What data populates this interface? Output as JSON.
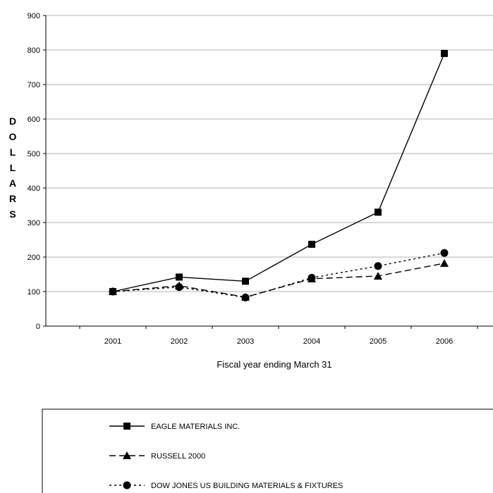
{
  "chart_data": {
    "type": "line",
    "categories": [
      "2001",
      "2002",
      "2003",
      "2004",
      "2005",
      "2006"
    ],
    "series": [
      {
        "name": "EAGLE MATERIALS INC.",
        "values": [
          100,
          142,
          130,
          237,
          330,
          790
        ],
        "marker": "square",
        "dash": "solid"
      },
      {
        "name": "RUSSELL 2000",
        "values": [
          100,
          117,
          84,
          137,
          145,
          182
        ],
        "marker": "triangle",
        "dash": "dashed"
      },
      {
        "name": "DOW JONES US BUILDING MATERIALS & FIXTURES",
        "values": [
          100,
          113,
          83,
          140,
          174,
          212
        ],
        "marker": "circle",
        "dash": "dotted"
      }
    ],
    "xlabel": "Fiscal year ending March 31",
    "ylabel": "DOLLARS",
    "ylim": [
      0,
      900
    ],
    "yticks": [
      0,
      100,
      200,
      300,
      400,
      500,
      600,
      700,
      800,
      900
    ],
    "grid": "horizontal",
    "legend_position": "bottom"
  }
}
